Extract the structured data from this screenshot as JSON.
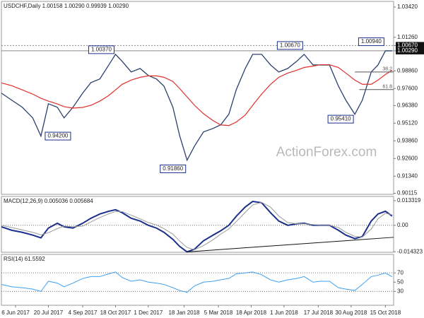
{
  "chart_data": [
    {
      "type": "line",
      "title": "USDCHF,Daily  1.00158 1.00290 0.99939 1.00290",
      "watermark": "ActionForex.com",
      "x": [
        "2017-05-18",
        "2017-06-01",
        "2017-06-15",
        "2017-06-29",
        "2017-07-10",
        "2017-07-20",
        "2017-08-01",
        "2017-08-10",
        "2017-08-22",
        "2017-09-04",
        "2017-09-15",
        "2017-09-27",
        "2017-10-09",
        "2017-10-18",
        "2017-10-27",
        "2017-11-08",
        "2017-11-20",
        "2017-12-01",
        "2017-12-12",
        "2017-12-22",
        "2018-01-03",
        "2018-01-12",
        "2018-01-22",
        "2018-02-01",
        "2018-02-13",
        "2018-02-26",
        "2018-03-08",
        "2018-03-19",
        "2018-03-29",
        "2018-04-10",
        "2018-04-20",
        "2018-05-02",
        "2018-05-14",
        "2018-05-25",
        "2018-06-06",
        "2018-06-18",
        "2018-06-28",
        "2018-07-10",
        "2018-07-20",
        "2018-08-01",
        "2018-08-13",
        "2018-08-23",
        "2018-09-04",
        "2018-09-14",
        "2018-09-26",
        "2018-10-05",
        "2018-10-15",
        "2018-10-24"
      ],
      "xlim": [
        "2017-05-18",
        "2018-10-26"
      ],
      "xticks": [
        {
          "value": "2017-06-06",
          "label": "6 Jun 2017"
        },
        {
          "value": "2017-07-20",
          "label": "20 Jul 2017"
        },
        {
          "value": "2017-09-04",
          "label": "4 Sep 2017"
        },
        {
          "value": "2017-10-18",
          "label": "18 Oct 2017"
        },
        {
          "value": "2017-12-01",
          "label": "1 Dec 2017"
        },
        {
          "value": "2018-01-18",
          "label": "18 Jan 2018"
        },
        {
          "value": "2018-03-05",
          "label": "5 Mar 2018"
        },
        {
          "value": "2018-04-18",
          "label": "18 Apr 2018"
        },
        {
          "value": "2018-06-01",
          "label": "1 Jun 2018"
        },
        {
          "value": "2018-07-17",
          "label": "17 Jul 2018"
        },
        {
          "value": "2018-08-30",
          "label": "30 Aug 2018"
        },
        {
          "value": "2018-10-15",
          "label": "15 Oct 2018"
        }
      ],
      "ylim": [
        0.9004,
        1.0382
      ],
      "yticks": [
        {
          "value": 1.0342,
          "label": "1.03420"
        },
        {
          "value": 1.0126,
          "label": "1.01260"
        },
        {
          "value": 1.0067,
          "label": "1.00670",
          "highlight": true
        },
        {
          "value": 1.0029,
          "label": "1.00290",
          "highlight": true
        },
        {
          "value": 0.9886,
          "label": "0.98860"
        },
        {
          "value": 0.976,
          "label": "0.97600"
        },
        {
          "value": 0.9638,
          "label": "0.96380"
        },
        {
          "value": 0.9512,
          "label": "0.95120"
        },
        {
          "value": 0.9386,
          "label": "0.93860"
        },
        {
          "value": 0.926,
          "label": "0.92600"
        },
        {
          "value": 0.9134,
          "label": "0.91340"
        },
        {
          "value": 0.90115,
          "label": "0.90115"
        }
      ],
      "series": [
        {
          "color": "#2b3f6e",
          "width": 1.3,
          "values": [
            0.9727,
            0.9676,
            0.9626,
            0.955,
            0.942,
            0.9651,
            0.9626,
            0.955,
            0.9626,
            0.9727,
            0.9802,
            0.9828,
            0.9928,
            1.0004,
            0.9954,
            0.9878,
            0.9903,
            0.9853,
            0.9828,
            0.9777,
            0.9626,
            0.9424,
            0.9248,
            0.9349,
            0.945,
            0.9475,
            0.95,
            0.9576,
            0.9752,
            0.9903,
            1.0004,
            1.0004,
            0.9928,
            0.9878,
            0.9903,
            0.9954,
            1.0004,
            0.9928,
            0.9928,
            0.9928,
            0.9777,
            0.9676,
            0.9576,
            0.9676,
            0.9878,
            0.9928,
            1.0029,
            1.0029
          ]
        },
        {
          "color": "#e0302b",
          "width": 1.2,
          "values": [
            0.98,
            0.978,
            0.975,
            0.972,
            0.969,
            0.967,
            0.965,
            0.963,
            0.962,
            0.9625,
            0.964,
            0.967,
            0.971,
            0.975,
            0.979,
            0.982,
            0.984,
            0.985,
            0.985,
            0.984,
            0.981,
            0.976,
            0.97,
            0.964,
            0.958,
            0.953,
            0.95,
            0.9495,
            0.952,
            0.957,
            0.964,
            0.972,
            0.979,
            0.984,
            0.987,
            0.989,
            0.991,
            0.992,
            0.993,
            0.993,
            0.991,
            0.987,
            0.982,
            0.979,
            0.979,
            0.982,
            0.986,
            0.989
          ]
        }
      ],
      "annotations": [
        {
          "value": 1.0037,
          "label": "1.00370",
          "x": "2017-10-18",
          "side": "left"
        },
        {
          "value": 0.942,
          "label": "0.94200",
          "x": "2017-07-10",
          "side": "right"
        },
        {
          "value": 0.9186,
          "label": "0.91860",
          "x": "2018-01-22",
          "side": "left"
        },
        {
          "value": 1.0067,
          "label": "1.00670",
          "x": "2018-06-28",
          "side": "left"
        },
        {
          "value": 0.9541,
          "label": "0.95410",
          "x": "2018-09-04",
          "side": "left"
        },
        {
          "value": 1.0094,
          "label": "1.00940",
          "x": "2018-10-15",
          "side": "left"
        }
      ],
      "fib_levels": [
        {
          "text": "38.2",
          "level": 0.9878,
          "from": "2018-09-04"
        },
        {
          "text": "61.8",
          "level": 0.9752,
          "from": "2018-09-10"
        }
      ],
      "grid": false
    },
    {
      "type": "line",
      "title": "MACD(12,26,9) 0.005036 0.005684",
      "ylim": [
        -0.0146,
        0.0156
      ],
      "yticks": [
        0.013319,
        {
          "value": 0,
          "label": "0.00"
        },
        -0.014323
      ],
      "levels": [
        0
      ],
      "series": [
        {
          "color": "#1a2f8c",
          "width": 2,
          "values": [
            -0.0008,
            -0.0027,
            -0.0038,
            -0.0053,
            -0.0068,
            -0.0015,
            0.0011,
            -0.0008,
            -0.0015,
            0.0011,
            0.0038,
            0.0061,
            0.0076,
            0.0084,
            0.0068,
            0.0038,
            0.0023,
            0,
            -0.0015,
            -0.0038,
            -0.0076,
            -0.0114,
            -0.0144,
            -0.0129,
            -0.0084,
            -0.0053,
            -0.003,
            0,
            0.0049,
            0.0099,
            0.0129,
            0.0122,
            0.0068,
            0.0023,
            0,
            0.0008,
            0.0011,
            0,
            0,
            0,
            -0.0027,
            -0.0053,
            -0.0072,
            -0.0061,
            0.0023,
            0.0061,
            0.0076,
            0.005
          ]
        },
        {
          "color": "#9a9a9a",
          "width": 1,
          "values": [
            0,
            -0.0012,
            -0.0025,
            -0.0038,
            -0.0052,
            -0.004,
            -0.0018,
            -0.0004,
            -0.0008,
            -0.0004,
            0.0018,
            0.0042,
            0.0062,
            0.0075,
            0.0074,
            0.0055,
            0.0035,
            0.0015,
            0.0002,
            -0.0018,
            -0.0048,
            -0.0085,
            -0.012,
            -0.0132,
            -0.011,
            -0.0078,
            -0.0048,
            -0.002,
            0.002,
            0.007,
            0.011,
            0.0124,
            0.0098,
            0.005,
            0.0015,
            0.0008,
            0.0008,
            0.0004,
            0,
            0,
            -0.0012,
            -0.0038,
            -0.006,
            -0.0064,
            -0.002,
            0.0035,
            0.0065,
            0.0057
          ]
        }
      ],
      "trendline": {
        "x": [
          "2018-01-22",
          "2018-10-26"
        ],
        "values": [
          -0.0144,
          -0.0065
        ],
        "color": "#111111"
      }
    },
    {
      "type": "line",
      "title": "RSI(14) 61.5592",
      "ylim": [
        0,
        110
      ],
      "yticks": [
        70,
        50,
        30
      ],
      "levels": [
        70,
        30
      ],
      "series": [
        {
          "color": "#3da0f0",
          "width": 1,
          "values": [
            45,
            40,
            38,
            35,
            30,
            52,
            48,
            40,
            48,
            58,
            62,
            62,
            68,
            72,
            60,
            52,
            55,
            50,
            48,
            45,
            38,
            32,
            28,
            42,
            50,
            52,
            55,
            58,
            68,
            70,
            72,
            66,
            55,
            50,
            55,
            58,
            62,
            50,
            52,
            52,
            38,
            35,
            32,
            45,
            62,
            65,
            70,
            61.5592
          ]
        }
      ]
    }
  ]
}
